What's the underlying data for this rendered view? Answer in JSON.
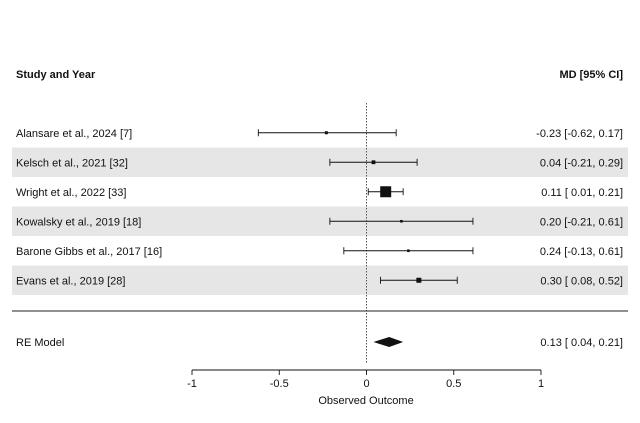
{
  "chart_data": {
    "type": "forest",
    "left_header": "Study and Year",
    "right_header": "MD [95% CI]",
    "xlabel": "Observed Outcome",
    "xlim": [
      -1,
      1
    ],
    "xticks": [
      -1,
      -0.5,
      0,
      0.5,
      1
    ],
    "xtick_labels": [
      "-1",
      "-0.5",
      "0",
      "0.5",
      "1"
    ],
    "reference_line": 0,
    "row_shading": "alternating light gray",
    "studies": [
      {
        "label": "Alansare et al., 2024 [7]",
        "estimate": -0.23,
        "lower": -0.62,
        "upper": 0.17,
        "ci_text": "-0.23 [-0.62, 0.17]",
        "weight": 1.0
      },
      {
        "label": "Kelsch et al., 2021 [32]",
        "estimate": 0.04,
        "lower": -0.21,
        "upper": 0.29,
        "ci_text": "0.04 [-0.21, 0.29]",
        "weight": 1.2
      },
      {
        "label": "Wright et al., 2022 [33]",
        "estimate": 0.11,
        "lower": 0.01,
        "upper": 0.21,
        "ci_text": "0.11 [ 0.01, 0.21]",
        "weight": 3.0
      },
      {
        "label": "Kowalsky et al., 2019 [18]",
        "estimate": 0.2,
        "lower": -0.21,
        "upper": 0.61,
        "ci_text": "0.20 [-0.21, 0.61]",
        "weight": 0.9
      },
      {
        "label": "Barone Gibbs et al., 2017 [16]",
        "estimate": 0.24,
        "lower": -0.13,
        "upper": 0.61,
        "ci_text": "0.24 [-0.13, 0.61]",
        "weight": 0.9
      },
      {
        "label": "Evans et al., 2019 [28]",
        "estimate": 0.3,
        "lower": 0.08,
        "upper": 0.52,
        "ci_text": "0.30 [ 0.08, 0.52]",
        "weight": 1.5
      }
    ],
    "summary": {
      "label": "RE Model",
      "estimate": 0.13,
      "lower": 0.04,
      "upper": 0.21,
      "ci_text": "0.13 [ 0.04, 0.21]"
    }
  }
}
